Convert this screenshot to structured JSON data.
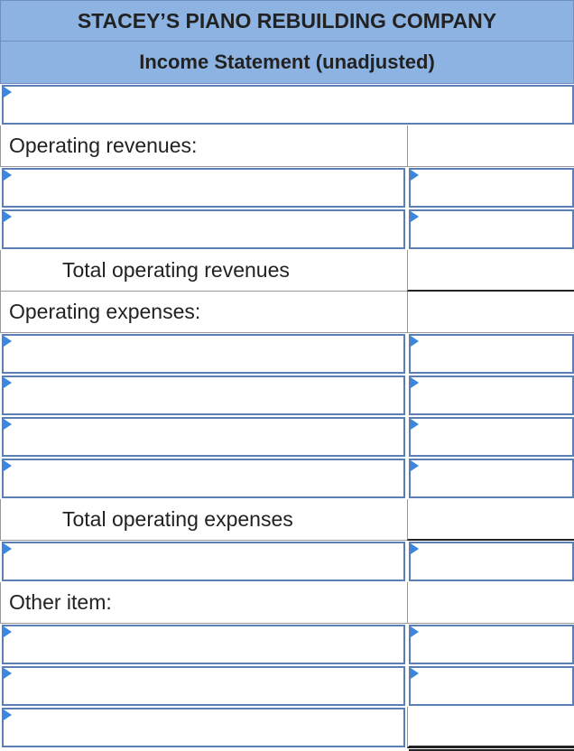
{
  "header": {
    "company": "STACEY’S PIANO REBUILDING COMPANY",
    "statement": "Income Statement (unadjusted)"
  },
  "rows": {
    "period": {
      "input_value": ""
    },
    "operating_revenues": {
      "label": "Operating revenues:"
    },
    "rev_1": {
      "account": "",
      "amount": ""
    },
    "rev_2": {
      "account": "",
      "amount": ""
    },
    "total_revenues": {
      "label": "Total operating revenues"
    },
    "operating_expenses": {
      "label": "Operating expenses:"
    },
    "exp_1": {
      "account": "",
      "amount": ""
    },
    "exp_2": {
      "account": "",
      "amount": ""
    },
    "exp_3": {
      "account": "",
      "amount": ""
    },
    "exp_4": {
      "account": "",
      "amount": ""
    },
    "total_expenses": {
      "label": "Total operating expenses"
    },
    "operating_income": {
      "account": "",
      "amount": ""
    },
    "other_item": {
      "label": "Other item:"
    },
    "other_1": {
      "account": "",
      "amount": ""
    },
    "other_2": {
      "account": "",
      "amount": ""
    },
    "net": {
      "account": "",
      "amount": ""
    }
  },
  "colors": {
    "header_bg": "#8db3e2",
    "input_border": "#5b7fb4",
    "dropdown_marker": "#3a86e0"
  }
}
